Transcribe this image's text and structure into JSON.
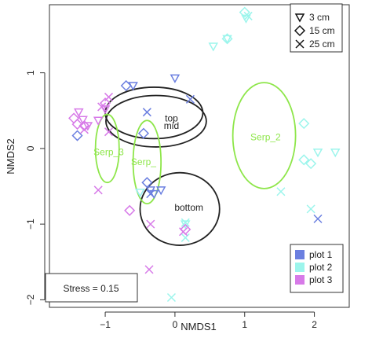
{
  "chart_data": {
    "type": "scatter",
    "title": "",
    "xlabel": "NMDS1",
    "ylabel": "NMDS2",
    "xlim": [
      -1.8,
      2.5
    ],
    "ylim": [
      -2.1,
      1.9
    ],
    "x_ticks": [
      -1,
      0,
      1,
      2
    ],
    "y_ticks": [
      -2,
      -1,
      0,
      1
    ],
    "x_tick_labels": [
      "−1",
      "0",
      "1",
      "2"
    ],
    "y_tick_labels": [
      "−2",
      "−1",
      "0",
      "1"
    ],
    "stress_label": "Stress = 0.15",
    "colors": {
      "plot 1": "#6b7fe0",
      "plot 2": "#9cf5ec",
      "plot 3": "#d77ae8",
      "ellipse_black": "#222222",
      "ellipse_green": "#8ee64a"
    },
    "shape_legend": {
      "placement": "top-right",
      "items": [
        {
          "shape": "triangle-down",
          "label": "3 cm"
        },
        {
          "shape": "diamond",
          "label": "15 cm"
        },
        {
          "shape": "x",
          "label": "25 cm"
        }
      ]
    },
    "color_legend": {
      "placement": "bottom-right",
      "items": [
        {
          "label": "plot 1",
          "color": "#6b7fe0"
        },
        {
          "label": "plot 2",
          "color": "#9cf5ec"
        },
        {
          "label": "plot 3",
          "color": "#d77ae8"
        }
      ]
    },
    "ellipses": [
      {
        "label": "top",
        "label_at": [
          -0.05,
          0.4
        ],
        "cx": -0.3,
        "cy": 0.47,
        "rx": 0.7,
        "ry": 0.34,
        "color": "black"
      },
      {
        "label": "mid",
        "label_at": [
          -0.05,
          0.3
        ],
        "cx": -0.27,
        "cy": 0.36,
        "rx": 0.72,
        "ry": 0.34,
        "color": "black"
      },
      {
        "label": "bottom",
        "label_at": [
          0.2,
          -0.78
        ],
        "cx": 0.07,
        "cy": -0.8,
        "rx": 0.57,
        "ry": 0.48,
        "color": "black"
      },
      {
        "label": "Serp_2",
        "label_at": [
          1.3,
          0.15
        ],
        "cx": 1.28,
        "cy": 0.17,
        "rx": 0.45,
        "ry": 0.7,
        "color": "green"
      },
      {
        "label": "Serp_3",
        "label_at": [
          -0.95,
          -0.05
        ],
        "cx": -0.97,
        "cy": 0.0,
        "rx": 0.17,
        "ry": 0.45,
        "color": "green"
      },
      {
        "label": "Serp_",
        "label_at": [
          -0.45,
          -0.18
        ],
        "cx": -0.4,
        "cy": -0.18,
        "rx": 0.2,
        "ry": 0.55,
        "color": "green"
      }
    ],
    "series": [
      {
        "plot": "plot 1",
        "depth": "3 cm",
        "points": [
          [
            -0.6,
            0.83
          ],
          [
            -0.5,
            -0.58
          ],
          [
            -0.2,
            -0.55
          ],
          [
            -0.35,
            -0.55
          ],
          [
            -0.3,
            -0.6
          ],
          [
            0.0,
            0.93
          ]
        ]
      },
      {
        "plot": "plot 1",
        "depth": "15 cm",
        "points": [
          [
            -0.7,
            0.83
          ],
          [
            -0.45,
            0.2
          ],
          [
            -1.4,
            0.17
          ],
          [
            -0.4,
            -0.45
          ]
        ]
      },
      {
        "plot": "plot 1",
        "depth": "25 cm",
        "points": [
          [
            -0.4,
            0.48
          ],
          [
            0.22,
            0.65
          ],
          [
            -0.35,
            -0.6
          ],
          [
            2.05,
            -0.93
          ]
        ]
      },
      {
        "plot": "plot 2",
        "depth": "3 cm",
        "points": [
          [
            0.55,
            1.35
          ],
          [
            0.75,
            1.45
          ],
          [
            1.02,
            1.72
          ],
          [
            2.05,
            -0.05
          ],
          [
            2.3,
            -0.05
          ],
          [
            -0.5,
            -0.58
          ],
          [
            0.15,
            -1.0
          ]
        ]
      },
      {
        "plot": "plot 2",
        "depth": "15 cm",
        "points": [
          [
            0.75,
            1.45
          ],
          [
            1.0,
            1.8
          ],
          [
            1.85,
            0.33
          ],
          [
            1.85,
            -0.15
          ],
          [
            1.95,
            -0.2
          ]
        ]
      },
      {
        "plot": "plot 2",
        "depth": "25 cm",
        "points": [
          [
            1.05,
            1.75
          ],
          [
            1.52,
            -0.57
          ],
          [
            1.95,
            -0.8
          ],
          [
            0.15,
            -0.98
          ],
          [
            0.15,
            -1.18
          ],
          [
            -0.05,
            -1.97
          ]
        ]
      },
      {
        "plot": "plot 3",
        "depth": "3 cm",
        "points": [
          [
            -1.38,
            0.48
          ],
          [
            -1.32,
            0.38
          ],
          [
            -1.25,
            0.3
          ],
          [
            -1.1,
            0.37
          ],
          [
            -1.0,
            0.52
          ]
        ]
      },
      {
        "plot": "plot 3",
        "depth": "15 cm",
        "points": [
          [
            -1.45,
            0.4
          ],
          [
            -1.4,
            0.32
          ],
          [
            -1.0,
            0.6
          ],
          [
            -0.65,
            -0.82
          ],
          [
            0.15,
            -1.07
          ],
          [
            -1.3,
            0.3
          ]
        ]
      },
      {
        "plot": "plot 3",
        "depth": "25 cm",
        "points": [
          [
            -0.95,
            0.68
          ],
          [
            -1.05,
            0.55
          ],
          [
            -1.3,
            0.25
          ],
          [
            -0.95,
            0.22
          ],
          [
            -1.1,
            -0.55
          ],
          [
            -0.35,
            -1.0
          ],
          [
            -0.37,
            -1.6
          ],
          [
            0.12,
            -1.1
          ]
        ]
      }
    ]
  }
}
